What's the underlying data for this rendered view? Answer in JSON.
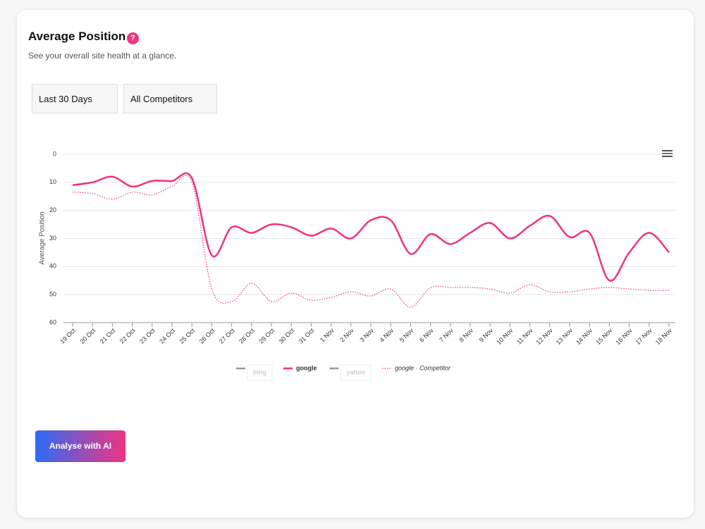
{
  "header": {
    "title": "Average Position",
    "help": "?",
    "subtitle": "See your overall site health at a glance."
  },
  "filters": [
    "Last 30 Days",
    "All Competitors"
  ],
  "button": "Analyse with AI",
  "chart_data": {
    "type": "line",
    "y_label": "Average Position",
    "categories": [
      "19 Oct",
      "20 Oct",
      "21 Oct",
      "22 Oct",
      "23 Oct",
      "24 Oct",
      "25 Oct",
      "26 Oct",
      "27 Oct",
      "28 Oct",
      "29 Oct",
      "30 Oct",
      "31 Oct",
      "1 Nov",
      "2 Nov",
      "3 Nov",
      "4 Nov",
      "5 Nov",
      "6 Nov",
      "7 Nov",
      "8 Nov",
      "9 Nov",
      "10 Nov",
      "11 Nov",
      "12 Nov",
      "13 Nov",
      "14 Nov",
      "15 Nov",
      "16 Nov",
      "17 Nov",
      "18 Nov"
    ],
    "ylim": [
      0,
      60
    ],
    "yticks": [
      0,
      10,
      20,
      30,
      40,
      50,
      60
    ],
    "y_reversed": true,
    "grid": true,
    "series": [
      {
        "name": "bing",
        "color": "#999999",
        "hidden": true
      },
      {
        "name": "google",
        "color": "#f0337f",
        "values": [
          11,
          10,
          8,
          11.5,
          9.5,
          9.5,
          8.5,
          36,
          26,
          28,
          25,
          26,
          29,
          26.5,
          30,
          23.5,
          23.5,
          35.5,
          28.5,
          32,
          28,
          24.5,
          30,
          25.5,
          22,
          29.5,
          28,
          45,
          35,
          28,
          35
        ]
      },
      {
        "name": "yahoo",
        "color": "#999999",
        "hidden": true
      },
      {
        "name": "google · Competitor",
        "color": "#f0337f",
        "dash": "dot",
        "values": [
          13.5,
          14,
          16,
          13.5,
          14.5,
          11.5,
          10,
          48,
          52.5,
          46,
          52.5,
          49.5,
          52,
          51,
          49,
          50.5,
          48,
          54.5,
          47.5,
          47.5,
          47.5,
          48,
          49.5,
          46.5,
          49,
          49,
          48,
          47.5,
          48,
          48.5,
          48.5
        ]
      }
    ]
  }
}
